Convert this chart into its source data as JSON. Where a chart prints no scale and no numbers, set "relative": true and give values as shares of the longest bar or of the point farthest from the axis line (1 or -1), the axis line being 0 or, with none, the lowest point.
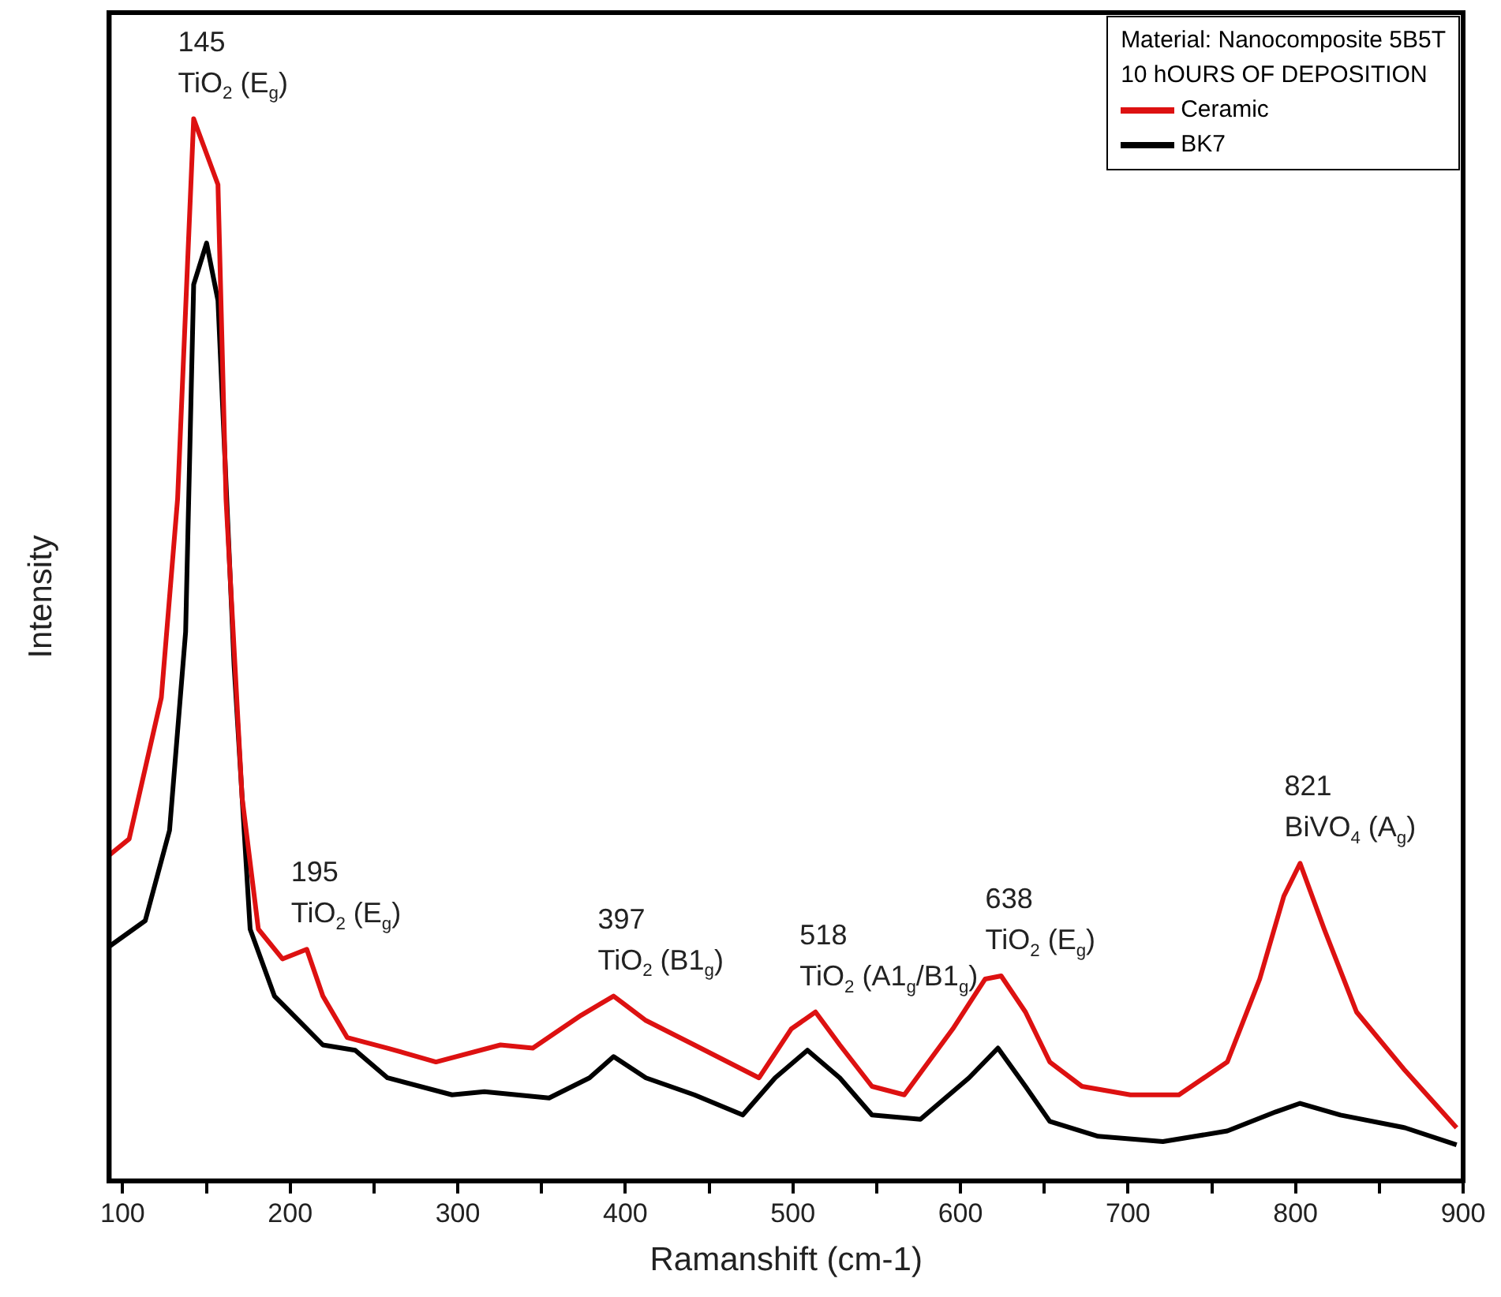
{
  "chart_data": {
    "type": "line",
    "relative": true,
    "xlabel": "Ramanshift (cm-1)",
    "ylabel": "Intensity",
    "legend": "top right",
    "legend_title": "Material: Nanocomposite 5B5T\n10 hOURS OF DEPOSITION",
    "marker": "none",
    "grid": false,
    "tick_labels": "x",
    "xlim": [
      92,
      900
    ],
    "xticks": [
      100,
      {
        "value": 150,
        "label": null
      },
      200,
      {
        "value": 250,
        "label": null
      },
      300,
      {
        "value": 350,
        "label": null
      },
      400,
      {
        "value": 450,
        "label": null
      },
      500,
      {
        "value": 550,
        "label": null
      },
      600,
      {
        "value": 650,
        "label": null
      },
      700,
      {
        "value": 750,
        "label": null
      },
      800,
      {
        "value": 850,
        "label": null
      },
      900
    ],
    "series": [
      {
        "name": "Ceramic",
        "color": "#dd1111",
        "x": [
          92.3,
          103.9,
          123.1,
          132.8,
          142.4,
          156.9,
          161.7,
          171.3,
          181,
          195.4,
          209.9,
          219.5,
          234,
          258.1,
          287,
          325.5,
          344.8,
          373.7,
          393,
          412.3,
          441.2,
          479.8,
          499,
          513.5,
          528,
          547.2,
          566.5,
          595.4,
          614.7,
          624.3,
          638.8,
          653.3,
          672.5,
          701.4,
          730.4,
          759.3,
          778.6,
          793,
          802.7,
          817.1,
          836.4,
          865.3,
          896.1
        ],
        "values": [
          0.307,
          0.322,
          0.455,
          0.642,
          1,
          0.938,
          0.642,
          0.361,
          0.237,
          0.209,
          0.218,
          0.174,
          0.135,
          0.125,
          0.112,
          0.128,
          0.125,
          0.156,
          0.174,
          0.151,
          0.128,
          0.097,
          0.143,
          0.159,
          0.128,
          0.089,
          0.081,
          0.143,
          0.19,
          0.193,
          0.159,
          0.112,
          0.089,
          0.081,
          0.081,
          0.112,
          0.19,
          0.268,
          0.299,
          0.237,
          0.159,
          0.104,
          0.05
        ]
      },
      {
        "name": "BK7",
        "color": "#000000",
        "x": [
          92.3,
          113.5,
          128,
          137.6,
          142.4,
          150.1,
          156.9,
          166.5,
          176.1,
          190.6,
          205.1,
          219.5,
          238.8,
          258.1,
          296.6,
          315.9,
          354.5,
          378.6,
          393,
          412.3,
          441.2,
          470.1,
          489.4,
          508.7,
          528,
          547.2,
          576.1,
          605.1,
          622.4,
          638.8,
          653.3,
          682.2,
          720.8,
          759.3,
          788.2,
          802.7,
          826.8,
          865.3,
          896.1
        ],
        "values": [
          0.221,
          0.245,
          0.33,
          0.517,
          0.844,
          0.883,
          0.829,
          0.486,
          0.237,
          0.174,
          0.151,
          0.128,
          0.123,
          0.097,
          0.081,
          0.084,
          0.078,
          0.097,
          0.117,
          0.097,
          0.081,
          0.062,
          0.097,
          0.123,
          0.097,
          0.062,
          0.058,
          0.097,
          0.125,
          0.089,
          0.056,
          0.042,
          0.037,
          0.047,
          0.065,
          0.073,
          0.062,
          0.05,
          0.034
        ]
      }
    ],
    "annotations": [
      {
        "text": "145\nTiO$_{2}$ (E$_{g}$)",
        "x": 142.4,
        "y": 1
      },
      {
        "text": "195\nTiO$_{2}$ (E$_{g}$)",
        "x": 209.9,
        "y": 0.218
      },
      {
        "text": "397\nTiO$_{2}$ (B1$_{g}$)",
        "x": 393,
        "y": 0.174
      },
      {
        "text": "518\nTiO$_{2}$ (A1$_{g}$/B1$_{g}$)",
        "x": 513.5,
        "y": 0.159
      },
      {
        "text": "638\nTiO$_{2}$ (E$_{g}$)",
        "x": 624.3,
        "y": 0.193
      },
      {
        "text": "821\nBiVO$_{4}$ (A$_{g}$)",
        "x": 802.7,
        "y": 0.299
      }
    ]
  }
}
